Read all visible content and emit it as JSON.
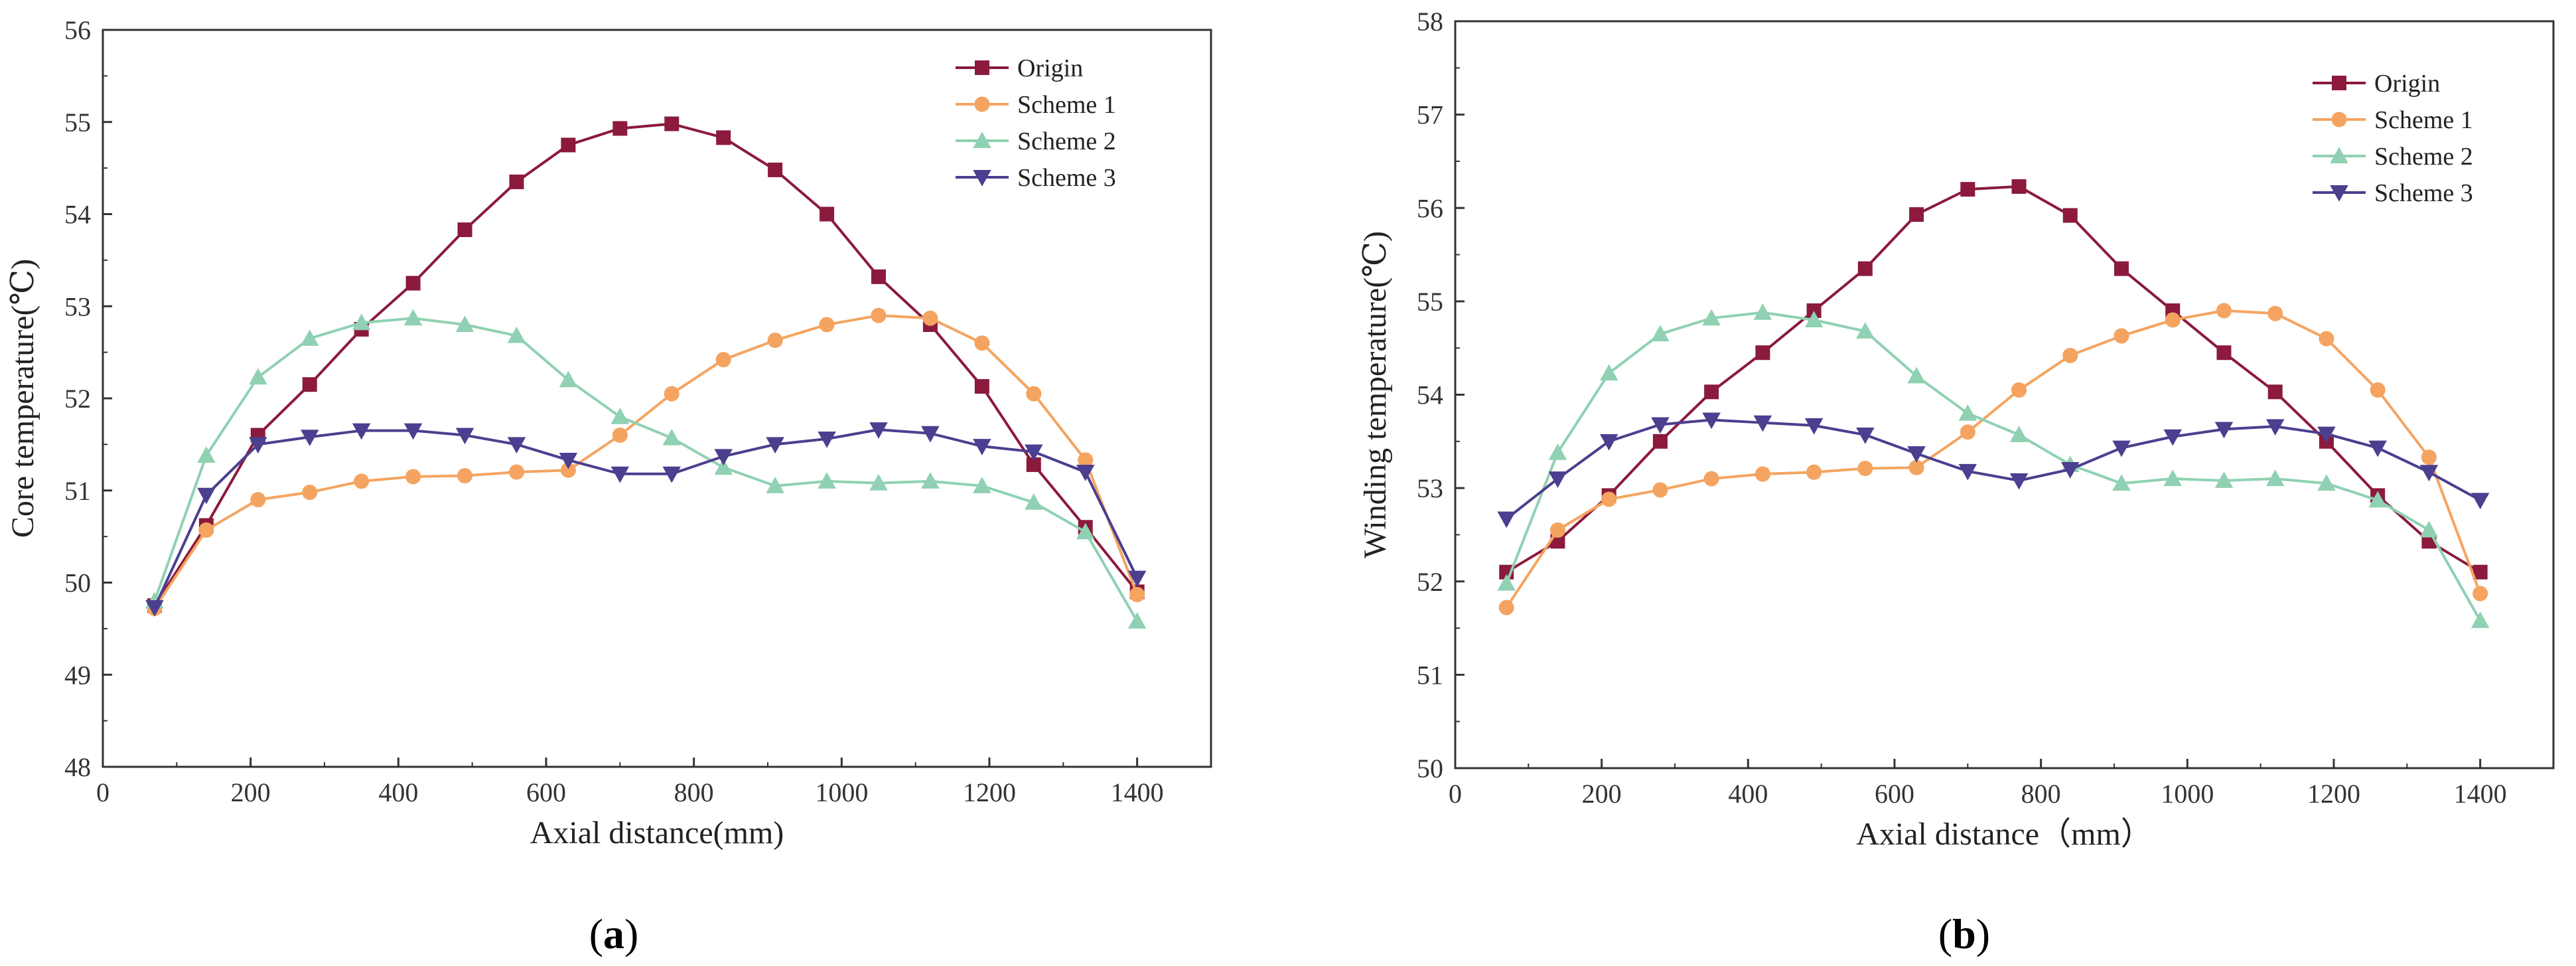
{
  "figure": {
    "panels": [
      "a",
      "b"
    ]
  },
  "chart_data": [
    {
      "type": "line",
      "panel_label": "a",
      "xlabel": "Axial distance(mm)",
      "ylabel": "Core temperature(℃)",
      "xlim": [
        0,
        1500
      ],
      "ylim": [
        48,
        56
      ],
      "xticks": [
        0,
        200,
        400,
        600,
        800,
        1000,
        1200,
        1400
      ],
      "yticks": [
        48,
        49,
        50,
        51,
        52,
        53,
        54,
        55,
        56
      ],
      "legend_position": "top-right",
      "x": [
        70,
        140,
        210,
        280,
        350,
        420,
        490,
        560,
        630,
        700,
        770,
        840,
        910,
        980,
        1050,
        1120,
        1190,
        1260,
        1330,
        1400
      ],
      "series": [
        {
          "name": "Origin",
          "marker": "square",
          "color": "#8b1a3c",
          "values": [
            49.75,
            50.62,
            51.6,
            52.15,
            52.75,
            53.25,
            53.83,
            54.35,
            54.75,
            54.93,
            54.98,
            54.83,
            54.48,
            54.0,
            53.32,
            52.8,
            52.13,
            51.28,
            50.6,
            49.9
          ]
        },
        {
          "name": "Scheme 1",
          "marker": "circle",
          "color": "#f4a460",
          "values": [
            49.72,
            50.57,
            50.9,
            50.98,
            51.1,
            51.15,
            51.16,
            51.2,
            51.22,
            51.6,
            52.05,
            52.42,
            52.63,
            52.8,
            52.9,
            52.87,
            52.6,
            52.05,
            51.33,
            49.87
          ]
        },
        {
          "name": "Scheme 2",
          "marker": "triangle-up",
          "color": "#8fd1b2",
          "values": [
            49.8,
            51.38,
            52.23,
            52.65,
            52.82,
            52.87,
            52.8,
            52.68,
            52.2,
            51.8,
            51.57,
            51.25,
            51.05,
            51.1,
            51.08,
            51.1,
            51.05,
            50.87,
            50.55,
            49.58
          ]
        },
        {
          "name": "Scheme 3",
          "marker": "triangle-down",
          "color": "#4b3f8f",
          "values": [
            49.73,
            50.95,
            51.5,
            51.58,
            51.65,
            51.65,
            51.6,
            51.5,
            51.33,
            51.18,
            51.18,
            51.37,
            51.5,
            51.56,
            51.66,
            51.62,
            51.48,
            51.42,
            51.2,
            50.05
          ]
        }
      ]
    },
    {
      "type": "line",
      "panel_label": "b",
      "xlabel": "Axial distance（mm）",
      "ylabel": "Winding temperature(℃)",
      "xlim": [
        0,
        1500
      ],
      "ylim": [
        50,
        58
      ],
      "xticks": [
        0,
        200,
        400,
        600,
        800,
        1000,
        1200,
        1400
      ],
      "yticks": [
        50,
        51,
        52,
        53,
        54,
        55,
        56,
        57,
        58
      ],
      "legend_position": "top-right",
      "x": [
        70,
        140,
        210,
        280,
        350,
        420,
        490,
        560,
        630,
        700,
        770,
        840,
        910,
        980,
        1050,
        1120,
        1190,
        1260,
        1330,
        1400
      ],
      "series": [
        {
          "name": "Origin",
          "marker": "square",
          "color": "#8b1a3c",
          "values": [
            52.1,
            52.43,
            52.92,
            53.5,
            54.03,
            54.45,
            54.9,
            55.35,
            55.93,
            56.2,
            56.23,
            55.92,
            55.35,
            54.9,
            54.45,
            54.03,
            53.5,
            52.92,
            52.43,
            52.1
          ]
        },
        {
          "name": "Scheme 1",
          "marker": "circle",
          "color": "#f4a460",
          "values": [
            51.72,
            52.55,
            52.88,
            52.98,
            53.1,
            53.15,
            53.17,
            53.21,
            53.22,
            53.6,
            54.05,
            54.42,
            54.63,
            54.8,
            54.9,
            54.87,
            54.6,
            54.05,
            53.33,
            51.87
          ]
        },
        {
          "name": "Scheme 2",
          "marker": "triangle-up",
          "color": "#8fd1b2",
          "values": [
            51.98,
            53.38,
            54.23,
            54.65,
            54.82,
            54.88,
            54.8,
            54.68,
            54.2,
            53.8,
            53.57,
            53.25,
            53.05,
            53.1,
            53.08,
            53.1,
            53.05,
            52.87,
            52.55,
            51.58
          ]
        },
        {
          "name": "Scheme 3",
          "marker": "triangle-down",
          "color": "#4b3f8f",
          "values": [
            52.67,
            53.1,
            53.5,
            53.68,
            53.73,
            53.7,
            53.67,
            53.57,
            53.37,
            53.18,
            53.08,
            53.2,
            53.43,
            53.55,
            53.63,
            53.66,
            53.58,
            53.43,
            53.17,
            52.87
          ]
        }
      ]
    }
  ]
}
